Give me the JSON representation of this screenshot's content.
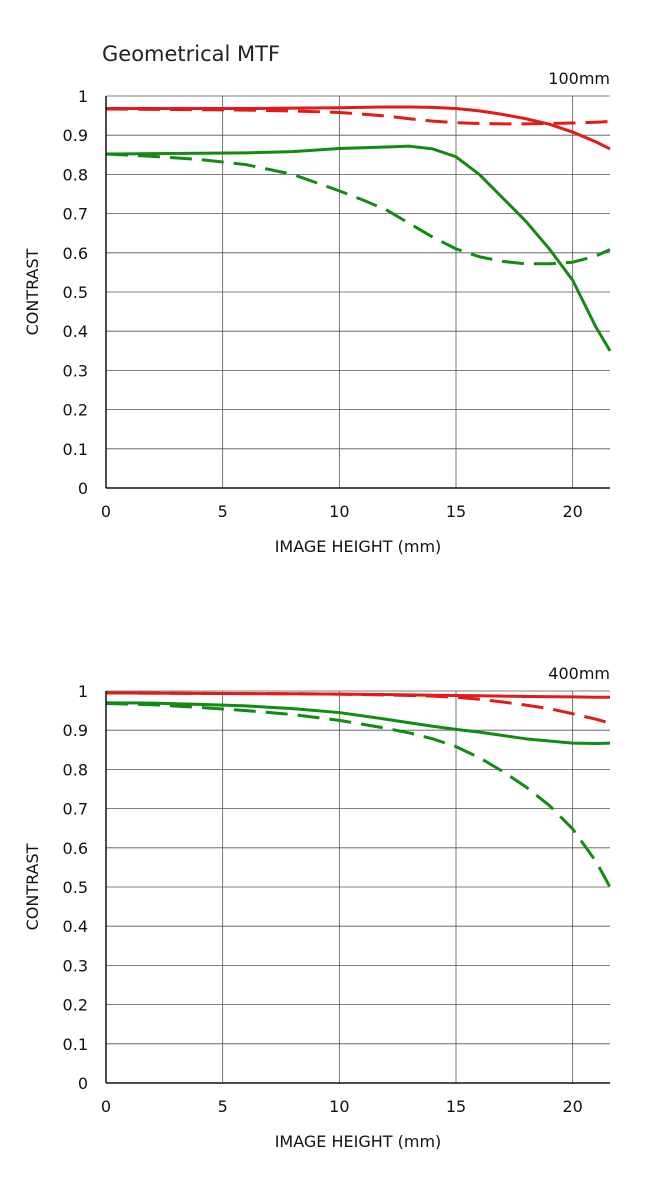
{
  "page_title": "Geometrical MTF",
  "chart_data": [
    {
      "type": "line",
      "focal_label": "100mm",
      "xlabel": "IMAGE HEIGHT (mm)",
      "ylabel": "CONTRAST",
      "xlim": [
        0,
        21.6
      ],
      "ylim": [
        0,
        1
      ],
      "xticks": [
        "0",
        "5",
        "10",
        "15",
        "20"
      ],
      "yticks": [
        "0",
        "0.1",
        "0.2",
        "0.3",
        "0.4",
        "0.5",
        "0.6",
        "0.7",
        "0.8",
        "0.9",
        "1"
      ],
      "grid": true,
      "series": [
        {
          "color": "#e21a1a",
          "style": "solid",
          "x": [
            0,
            2,
            4,
            6,
            8,
            10,
            12,
            13,
            14,
            15,
            16,
            17,
            18,
            19,
            20,
            21,
            21.6
          ],
          "y": [
            0.968,
            0.968,
            0.968,
            0.968,
            0.969,
            0.97,
            0.972,
            0.972,
            0.971,
            0.968,
            0.962,
            0.953,
            0.942,
            0.928,
            0.908,
            0.883,
            0.865
          ]
        },
        {
          "color": "#e21a1a",
          "style": "dashed",
          "x": [
            0,
            2,
            4,
            6,
            8,
            10,
            12,
            13,
            14,
            15,
            16,
            17,
            18,
            19,
            20,
            21,
            21.6
          ],
          "y": [
            0.967,
            0.966,
            0.965,
            0.964,
            0.962,
            0.958,
            0.949,
            0.942,
            0.936,
            0.932,
            0.93,
            0.929,
            0.929,
            0.93,
            0.931,
            0.933,
            0.935
          ]
        },
        {
          "color": "#138a13",
          "style": "solid",
          "x": [
            0,
            2,
            4,
            6,
            8,
            10,
            11,
            12,
            13,
            14,
            15,
            16,
            17,
            18,
            19,
            20,
            20.5,
            21,
            21.6
          ],
          "y": [
            0.852,
            0.853,
            0.854,
            0.855,
            0.858,
            0.866,
            0.868,
            0.87,
            0.872,
            0.865,
            0.845,
            0.8,
            0.74,
            0.68,
            0.61,
            0.53,
            0.47,
            0.41,
            0.35
          ]
        },
        {
          "color": "#138a13",
          "style": "dashed",
          "x": [
            0,
            2,
            4,
            6,
            8,
            10,
            11,
            12,
            13,
            14,
            15,
            16,
            17,
            18,
            19,
            20,
            21,
            21.6
          ],
          "y": [
            0.852,
            0.846,
            0.838,
            0.825,
            0.8,
            0.758,
            0.735,
            0.71,
            0.675,
            0.64,
            0.61,
            0.59,
            0.578,
            0.572,
            0.572,
            0.576,
            0.592,
            0.608
          ]
        }
      ]
    },
    {
      "type": "line",
      "focal_label": "400mm",
      "xlabel": "IMAGE HEIGHT (mm)",
      "ylabel": "CONTRAST",
      "xlim": [
        0,
        21.6
      ],
      "ylim": [
        0,
        1
      ],
      "xticks": [
        "0",
        "5",
        "10",
        "15",
        "20"
      ],
      "yticks": [
        "0",
        "0.1",
        "0.2",
        "0.3",
        "0.4",
        "0.5",
        "0.6",
        "0.7",
        "0.8",
        "0.9",
        "1"
      ],
      "grid": true,
      "series": [
        {
          "color": "#e21a1a",
          "style": "solid",
          "x": [
            0,
            4,
            8,
            10,
            12,
            14,
            16,
            18,
            20,
            21,
            21.6
          ],
          "y": [
            0.995,
            0.994,
            0.993,
            0.992,
            0.991,
            0.989,
            0.988,
            0.986,
            0.985,
            0.984,
            0.984
          ]
        },
        {
          "color": "#e21a1a",
          "style": "dashed",
          "x": [
            0,
            4,
            8,
            10,
            12,
            14,
            15,
            16,
            17,
            18,
            19,
            20,
            21,
            21.6
          ],
          "y": [
            0.995,
            0.994,
            0.993,
            0.992,
            0.99,
            0.987,
            0.984,
            0.979,
            0.972,
            0.964,
            0.955,
            0.942,
            0.928,
            0.918
          ]
        },
        {
          "color": "#138a13",
          "style": "solid",
          "x": [
            0,
            2,
            4,
            6,
            8,
            10,
            12,
            14,
            15,
            16,
            18,
            20,
            21,
            21.6
          ],
          "y": [
            0.97,
            0.969,
            0.966,
            0.962,
            0.955,
            0.945,
            0.928,
            0.91,
            0.902,
            0.895,
            0.878,
            0.867,
            0.866,
            0.867
          ]
        },
        {
          "color": "#138a13",
          "style": "dashed",
          "x": [
            0,
            2,
            4,
            6,
            8,
            10,
            12,
            13,
            14,
            15,
            16,
            17,
            18,
            19,
            20,
            21,
            21.6
          ],
          "y": [
            0.968,
            0.965,
            0.958,
            0.95,
            0.94,
            0.925,
            0.905,
            0.893,
            0.878,
            0.858,
            0.83,
            0.795,
            0.755,
            0.708,
            0.648,
            0.565,
            0.5
          ]
        }
      ]
    }
  ]
}
